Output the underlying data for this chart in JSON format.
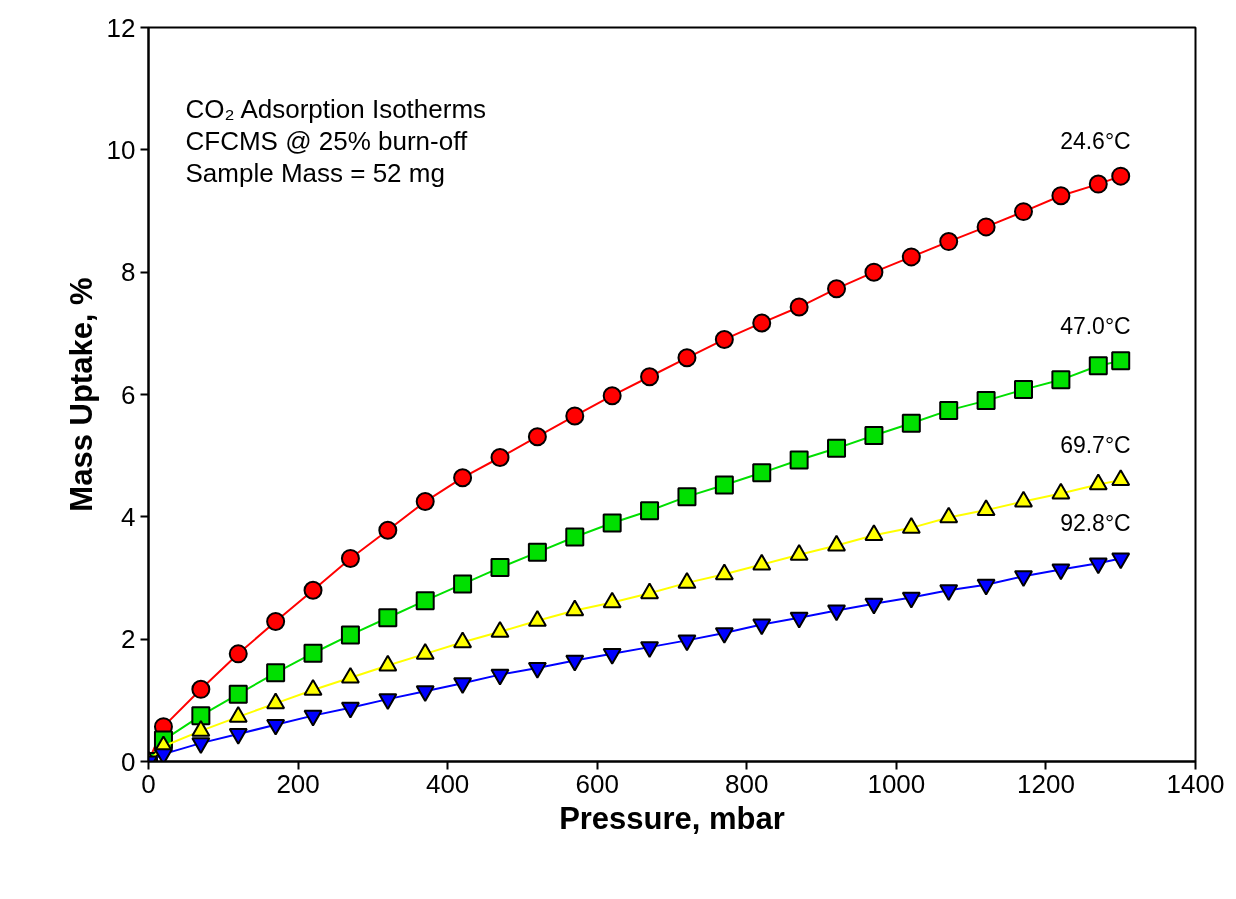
{
  "chart_data": {
    "type": "line",
    "xlabel": "Pressure, mbar",
    "ylabel": "Mass Uptake, %",
    "annotations": [
      "CO₂ Adsorption Isotherms",
      "CFCMS @ 25% burn-off",
      "Sample Mass = 52 mg"
    ],
    "x": [
      0,
      20,
      70,
      120,
      170,
      220,
      270,
      320,
      370,
      420,
      470,
      520,
      570,
      620,
      670,
      720,
      770,
      820,
      870,
      920,
      970,
      1020,
      1070,
      1120,
      1170,
      1220,
      1270,
      1300
    ],
    "series": [
      {
        "name": "24.6°C",
        "color": "#ff0000",
        "marker": "circle",
        "values": [
          0,
          0.57,
          1.18,
          1.76,
          2.29,
          2.8,
          3.32,
          3.78,
          4.25,
          4.64,
          4.97,
          5.31,
          5.65,
          5.98,
          6.29,
          6.6,
          6.9,
          7.17,
          7.43,
          7.73,
          8.0,
          8.25,
          8.5,
          8.74,
          8.99,
          9.25,
          9.44,
          9.57
        ]
      },
      {
        "name": "47.0°C",
        "color": "#00e000",
        "marker": "square",
        "values": [
          0,
          0.35,
          0.75,
          1.1,
          1.45,
          1.77,
          2.07,
          2.35,
          2.63,
          2.9,
          3.17,
          3.42,
          3.67,
          3.9,
          4.1,
          4.33,
          4.52,
          4.72,
          4.93,
          5.12,
          5.33,
          5.53,
          5.74,
          5.9,
          6.08,
          6.24,
          6.47,
          6.55
        ]
      },
      {
        "name": "69.7°C",
        "color": "#ffff00",
        "marker": "triangle",
        "values": [
          0,
          0.25,
          0.5,
          0.73,
          0.95,
          1.17,
          1.37,
          1.57,
          1.76,
          1.95,
          2.12,
          2.3,
          2.47,
          2.6,
          2.75,
          2.92,
          3.06,
          3.22,
          3.38,
          3.53,
          3.7,
          3.82,
          3.99,
          4.11,
          4.25,
          4.38,
          4.53,
          4.6
        ]
      },
      {
        "name": "92.8°C",
        "color": "#0000ff",
        "marker": "triangle",
        "values": [
          0,
          0.12,
          0.3,
          0.45,
          0.6,
          0.75,
          0.88,
          1.02,
          1.15,
          1.28,
          1.42,
          1.53,
          1.65,
          1.76,
          1.87,
          1.98,
          2.1,
          2.24,
          2.35,
          2.47,
          2.58,
          2.68,
          2.8,
          2.89,
          3.03,
          3.14,
          3.24,
          3.32
        ]
      }
    ],
    "xlim": [
      0,
      1400
    ],
    "xticks": [
      0,
      200,
      400,
      600,
      800,
      1000,
      1200,
      1400
    ],
    "ylim": [
      0,
      12
    ],
    "yticks": [
      0,
      2,
      4,
      6,
      8,
      10,
      12
    ],
    "grid": false,
    "line_style": "solid"
  }
}
